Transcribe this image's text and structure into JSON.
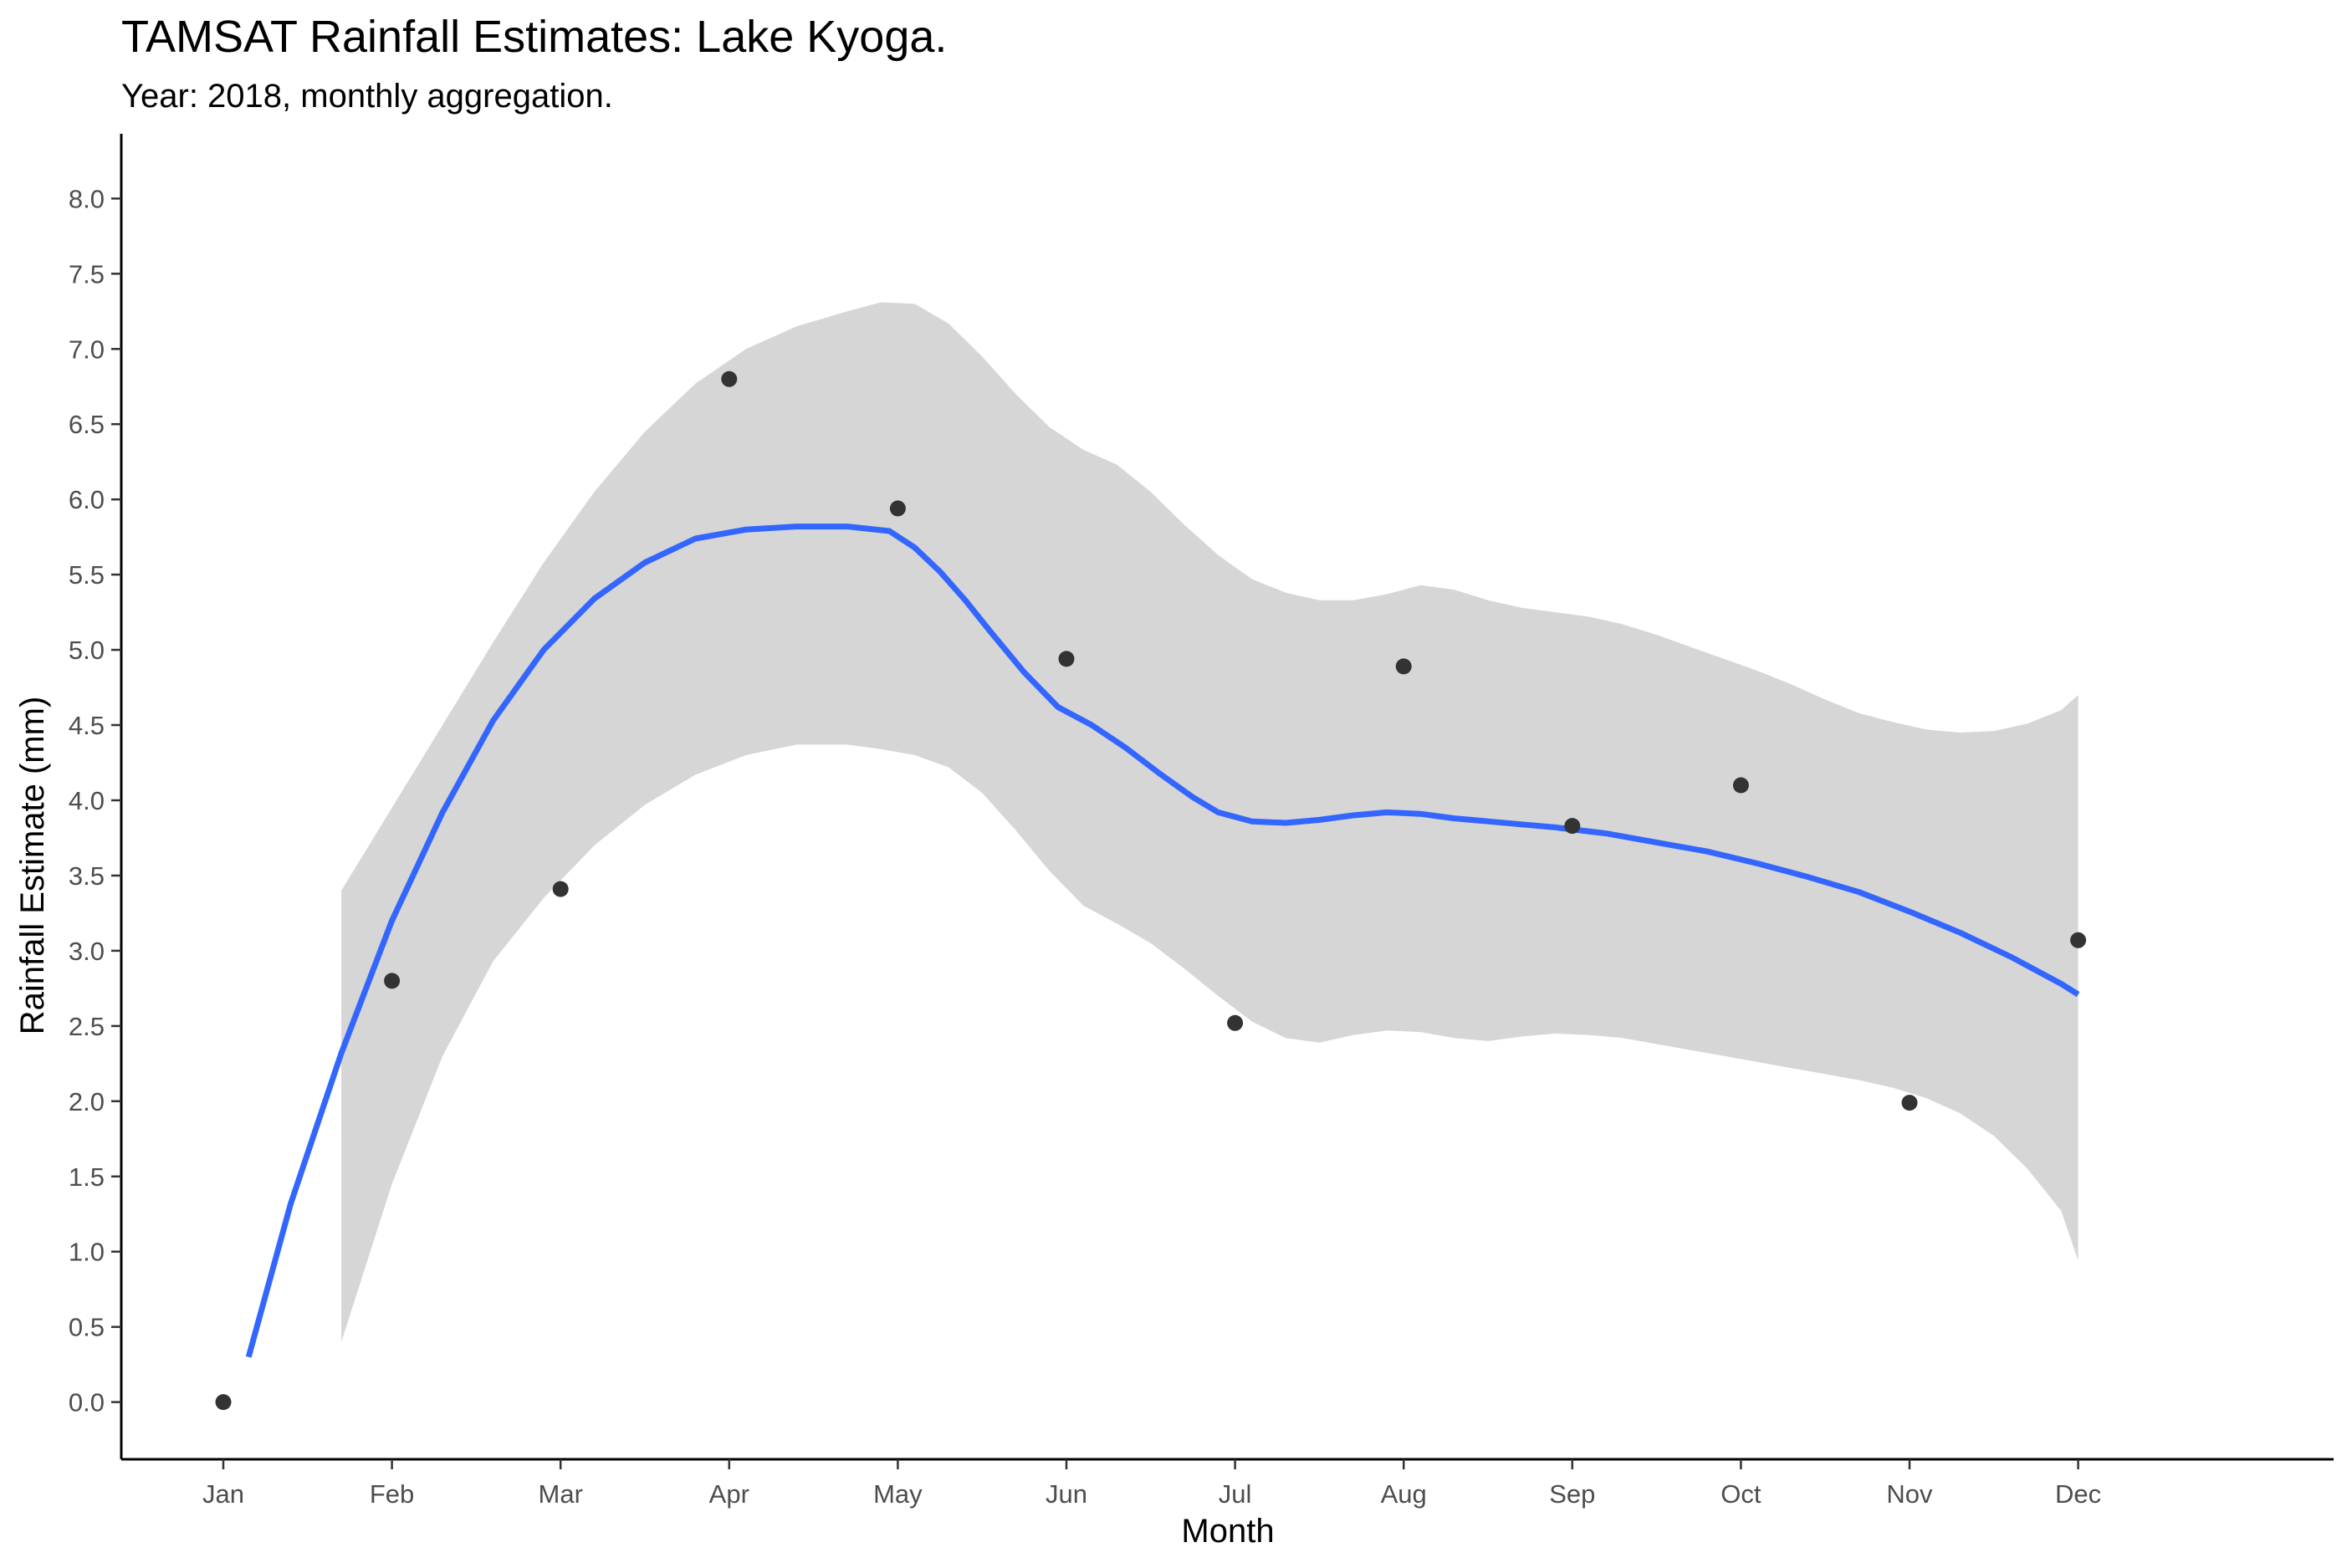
{
  "chart_data": {
    "type": "scatter",
    "title": "TAMSAT Rainfall Estimates: Lake Kyoga.",
    "subtitle": "Year: 2018, monthly aggregation.",
    "xlabel": "Month",
    "ylabel": "Rainfall Estimate (mm)",
    "x_ticks": [
      "Jan",
      "Feb",
      "Mar",
      "Apr",
      "May",
      "Jun",
      "Jul",
      "Aug",
      "Sep",
      "Oct",
      "Nov",
      "Dec"
    ],
    "y_ticks": [
      "0.0",
      "0.5",
      "1.0",
      "1.5",
      "2.0",
      "2.5",
      "3.0",
      "3.5",
      "4.0",
      "4.5",
      "5.0",
      "5.5",
      "6.0",
      "6.5",
      "7.0",
      "7.5",
      "8.0"
    ],
    "ylim": [
      -0.38,
      8.43
    ],
    "grid": false,
    "points": {
      "x": [
        "Jan",
        "Feb",
        "Mar",
        "Apr",
        "May",
        "Jun",
        "Jul",
        "Aug",
        "Sep",
        "Oct",
        "Nov",
        "Dec"
      ],
      "values": [
        0.0,
        2.8,
        3.41,
        6.8,
        5.94,
        4.94,
        2.52,
        4.89,
        3.83,
        4.1,
        1.99,
        3.07
      ],
      "color": "#333333"
    },
    "smooth": {
      "color": "#3366FF",
      "x_month": [
        1.15,
        1.4,
        1.7,
        2.0,
        2.3,
        2.6,
        2.9,
        3.2,
        3.5,
        3.8,
        4.1,
        4.4,
        4.7,
        4.95,
        5.1,
        5.25,
        5.4,
        5.55,
        5.75,
        5.95,
        6.15,
        6.35,
        6.55,
        6.75,
        6.9,
        7.1,
        7.3,
        7.5,
        7.7,
        7.9,
        8.1,
        8.3,
        8.5,
        8.7,
        8.9,
        9.2,
        9.5,
        9.8,
        10.1,
        10.4,
        10.7,
        11.0,
        11.3,
        11.6,
        11.9,
        12.0
      ],
      "y": [
        0.3,
        1.32,
        2.32,
        3.2,
        3.92,
        4.53,
        5.0,
        5.34,
        5.58,
        5.74,
        5.8,
        5.82,
        5.82,
        5.79,
        5.68,
        5.52,
        5.33,
        5.12,
        4.85,
        4.62,
        4.5,
        4.35,
        4.18,
        4.02,
        3.92,
        3.86,
        3.85,
        3.87,
        3.9,
        3.92,
        3.91,
        3.88,
        3.86,
        3.84,
        3.82,
        3.78,
        3.72,
        3.66,
        3.58,
        3.49,
        3.39,
        3.26,
        3.12,
        2.96,
        2.78,
        2.71
      ]
    },
    "confidence_band": {
      "color": "#d6d6d6",
      "x_month": [
        1.7,
        2.0,
        2.3,
        2.6,
        2.9,
        3.2,
        3.5,
        3.8,
        4.1,
        4.4,
        4.7,
        4.9,
        5.1,
        5.3,
        5.5,
        5.7,
        5.9,
        6.1,
        6.3,
        6.5,
        6.7,
        6.9,
        7.1,
        7.3,
        7.5,
        7.7,
        7.9,
        8.1,
        8.3,
        8.5,
        8.7,
        8.9,
        9.1,
        9.3,
        9.5,
        9.7,
        9.9,
        10.1,
        10.3,
        10.5,
        10.7,
        10.9,
        11.1,
        11.3,
        11.5,
        11.7,
        11.9,
        12.0
      ],
      "upper": [
        3.4,
        3.95,
        4.5,
        5.05,
        5.58,
        6.05,
        6.45,
        6.77,
        7.0,
        7.15,
        7.25,
        7.31,
        7.3,
        7.17,
        6.95,
        6.7,
        6.48,
        6.33,
        6.23,
        6.05,
        5.83,
        5.63,
        5.47,
        5.38,
        5.33,
        5.33,
        5.37,
        5.43,
        5.4,
        5.33,
        5.28,
        5.25,
        5.22,
        5.17,
        5.1,
        5.02,
        4.94,
        4.86,
        4.77,
        4.67,
        4.58,
        4.52,
        4.47,
        4.45,
        4.46,
        4.51,
        4.6,
        4.7
      ],
      "lower": [
        0.4,
        1.45,
        2.3,
        2.93,
        3.35,
        3.7,
        3.97,
        4.17,
        4.3,
        4.37,
        4.37,
        4.34,
        4.3,
        4.22,
        4.05,
        3.8,
        3.53,
        3.3,
        3.18,
        3.05,
        2.88,
        2.7,
        2.53,
        2.42,
        2.39,
        2.44,
        2.47,
        2.46,
        2.42,
        2.4,
        2.43,
        2.45,
        2.44,
        2.42,
        2.38,
        2.34,
        2.3,
        2.26,
        2.22,
        2.18,
        2.14,
        2.09,
        2.02,
        1.92,
        1.77,
        1.55,
        1.27,
        0.94
      ]
    }
  }
}
